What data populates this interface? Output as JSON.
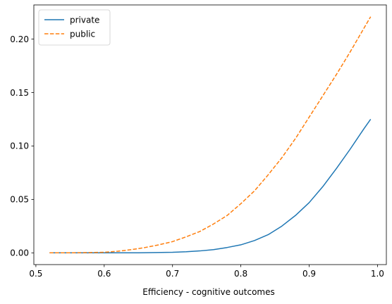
{
  "chart_data": {
    "type": "line",
    "title": "",
    "xlabel": "Efficiency - cognitive outcomes",
    "ylabel": "",
    "xlim": [
      0.497,
      1.013
    ],
    "ylim": [
      -0.011,
      0.232
    ],
    "xticks": [
      0.5,
      0.6,
      0.7,
      0.8,
      0.9,
      1.0
    ],
    "xtick_labels": [
      "0.5",
      "0.6",
      "0.7",
      "0.8",
      "0.9",
      "1.0"
    ],
    "yticks": [
      0.0,
      0.05,
      0.1,
      0.15,
      0.2
    ],
    "ytick_labels": [
      "0.00",
      "0.05",
      "0.10",
      "0.15",
      "0.20"
    ],
    "grid": false,
    "legend_position": "top-left",
    "series": [
      {
        "name": "private",
        "color": "#1f77b4",
        "style": "solid",
        "x": [
          0.52,
          0.55,
          0.6,
          0.65,
          0.7,
          0.72,
          0.74,
          0.76,
          0.78,
          0.8,
          0.82,
          0.84,
          0.86,
          0.88,
          0.9,
          0.92,
          0.94,
          0.96,
          0.98,
          0.99
        ],
        "y": [
          0.0,
          0.0,
          0.0,
          0.0,
          0.0005,
          0.001,
          0.0018,
          0.003,
          0.005,
          0.0075,
          0.0115,
          0.017,
          0.025,
          0.035,
          0.047,
          0.062,
          0.079,
          0.097,
          0.116,
          0.125
        ]
      },
      {
        "name": "public",
        "color": "#ff7f0e",
        "style": "dashed",
        "x": [
          0.52,
          0.55,
          0.6,
          0.62,
          0.64,
          0.66,
          0.68,
          0.7,
          0.72,
          0.74,
          0.76,
          0.78,
          0.8,
          0.82,
          0.84,
          0.86,
          0.88,
          0.9,
          0.92,
          0.94,
          0.96,
          0.98,
          0.99
        ],
        "y": [
          0.0,
          0.0,
          0.0005,
          0.0015,
          0.003,
          0.005,
          0.0075,
          0.0105,
          0.015,
          0.02,
          0.027,
          0.035,
          0.046,
          0.058,
          0.073,
          0.089,
          0.107,
          0.127,
          0.147,
          0.167,
          0.188,
          0.21,
          0.221
        ]
      }
    ]
  }
}
